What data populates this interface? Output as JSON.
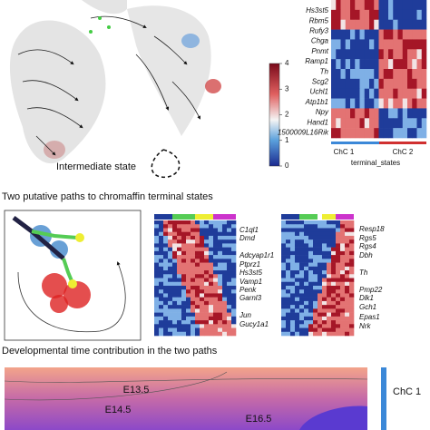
{
  "panel_a": {
    "annotation": "Intermediate state",
    "colorbar": {
      "ticks": [
        0,
        1,
        2,
        3,
        4
      ]
    },
    "genes": [
      "Hs3st5",
      "Rbm5",
      "Rufy3",
      "Chga",
      "Pnmt",
      "Ramp1",
      "Th",
      "Scg2",
      "Uchl1",
      "Atp1b1",
      "Npy",
      "Hand1",
      "1500009L16Rik"
    ],
    "groups": [
      "ChC 1",
      "ChC 2"
    ],
    "group_axis_label": "terminal_states"
  },
  "panel_b": {
    "title": "Two putative paths to chromaffin terminal states",
    "left_genes": [
      "C1ql1",
      "Dmd",
      "Adcyap1r1",
      "Ptprz1",
      "Hs3st5",
      "Vamp1",
      "Penk",
      "Garnl3",
      "Jun",
      "Gucy1a1"
    ],
    "right_genes": [
      "Resp18",
      "Rgs5",
      "Rgs4",
      "Dbh",
      "Th",
      "Pmp22",
      "Dlk1",
      "Gch1",
      "Epas1",
      "Nrk"
    ]
  },
  "panel_c": {
    "title": "Developmental time contribution in the two paths",
    "stages": [
      "E13.5",
      "E14.5",
      "E16.5"
    ],
    "legend": "ChC 1"
  }
}
